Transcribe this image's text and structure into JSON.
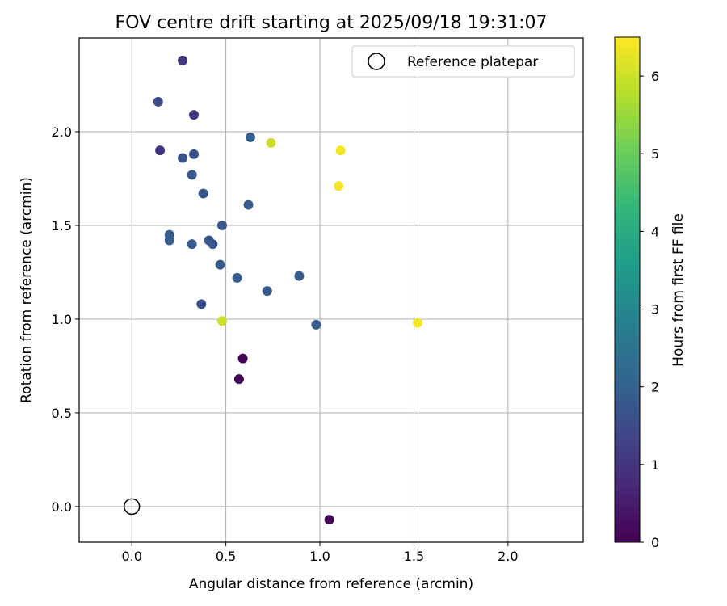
{
  "chart_data": {
    "type": "scatter",
    "title": "FOV centre drift starting at 2025/09/18 19:31:07",
    "xlabel": "Angular distance from reference (arcmin)",
    "ylabel": "Rotation from reference (arcmin)",
    "xlim": [
      -0.28,
      2.4
    ],
    "ylim": [
      -0.19,
      2.5
    ],
    "xticks": [
      0.0,
      0.5,
      1.0,
      1.5,
      2.0
    ],
    "xtick_labels": [
      "0.0",
      "0.5",
      "1.0",
      "1.5",
      "2.0"
    ],
    "yticks": [
      0.0,
      0.5,
      1.0,
      1.5,
      2.0
    ],
    "ytick_labels": [
      "0.0",
      "0.5",
      "1.0",
      "1.5",
      "2.0"
    ],
    "grid": true,
    "legend": {
      "position": "top-right",
      "entries": [
        "Reference platepar"
      ]
    },
    "reference_point": {
      "x": 0.0,
      "y": 0.0
    },
    "colorbar": {
      "label": "Hours from first FF file",
      "min": 0,
      "max": 6.5,
      "ticks": [
        0,
        1,
        2,
        3,
        4,
        5,
        6
      ],
      "tick_labels": [
        "0",
        "1",
        "2",
        "3",
        "4",
        "5",
        "6"
      ],
      "colormap": "viridis",
      "colors": [
        "#440154",
        "#482878",
        "#3e4989",
        "#31688e",
        "#26828e",
        "#1f9e89",
        "#35b779",
        "#6ece58",
        "#b5de2b",
        "#fde725"
      ]
    },
    "points": [
      {
        "x": 0.27,
        "y": 2.38,
        "hours": 1.0
      },
      {
        "x": 0.14,
        "y": 2.16,
        "hours": 1.5
      },
      {
        "x": 0.33,
        "y": 2.09,
        "hours": 1.0
      },
      {
        "x": 0.15,
        "y": 1.9,
        "hours": 1.0
      },
      {
        "x": 0.27,
        "y": 1.86,
        "hours": 1.7
      },
      {
        "x": 0.33,
        "y": 1.88,
        "hours": 1.7
      },
      {
        "x": 0.32,
        "y": 1.77,
        "hours": 1.8
      },
      {
        "x": 0.38,
        "y": 1.67,
        "hours": 1.8
      },
      {
        "x": 0.63,
        "y": 1.97,
        "hours": 2.0
      },
      {
        "x": 0.62,
        "y": 1.61,
        "hours": 1.9
      },
      {
        "x": 0.48,
        "y": 1.5,
        "hours": 1.8
      },
      {
        "x": 0.2,
        "y": 1.45,
        "hours": 1.9
      },
      {
        "x": 0.2,
        "y": 1.42,
        "hours": 1.9
      },
      {
        "x": 0.32,
        "y": 1.4,
        "hours": 1.9
      },
      {
        "x": 0.41,
        "y": 1.42,
        "hours": 1.8
      },
      {
        "x": 0.43,
        "y": 1.4,
        "hours": 1.8
      },
      {
        "x": 0.47,
        "y": 1.29,
        "hours": 1.9
      },
      {
        "x": 0.56,
        "y": 1.22,
        "hours": 1.9
      },
      {
        "x": 0.72,
        "y": 1.15,
        "hours": 1.9
      },
      {
        "x": 0.89,
        "y": 1.23,
        "hours": 1.9
      },
      {
        "x": 0.37,
        "y": 1.08,
        "hours": 1.6
      },
      {
        "x": 0.98,
        "y": 0.97,
        "hours": 1.9
      },
      {
        "x": 0.48,
        "y": 0.99,
        "hours": 6.0
      },
      {
        "x": 0.74,
        "y": 1.94,
        "hours": 6.0
      },
      {
        "x": 1.11,
        "y": 1.9,
        "hours": 6.4
      },
      {
        "x": 1.1,
        "y": 1.71,
        "hours": 6.4
      },
      {
        "x": 1.52,
        "y": 0.98,
        "hours": 6.4
      },
      {
        "x": 0.59,
        "y": 0.79,
        "hours": 0.05
      },
      {
        "x": 0.57,
        "y": 0.68,
        "hours": 0.05
      },
      {
        "x": 1.05,
        "y": -0.07,
        "hours": 0.05
      }
    ]
  }
}
